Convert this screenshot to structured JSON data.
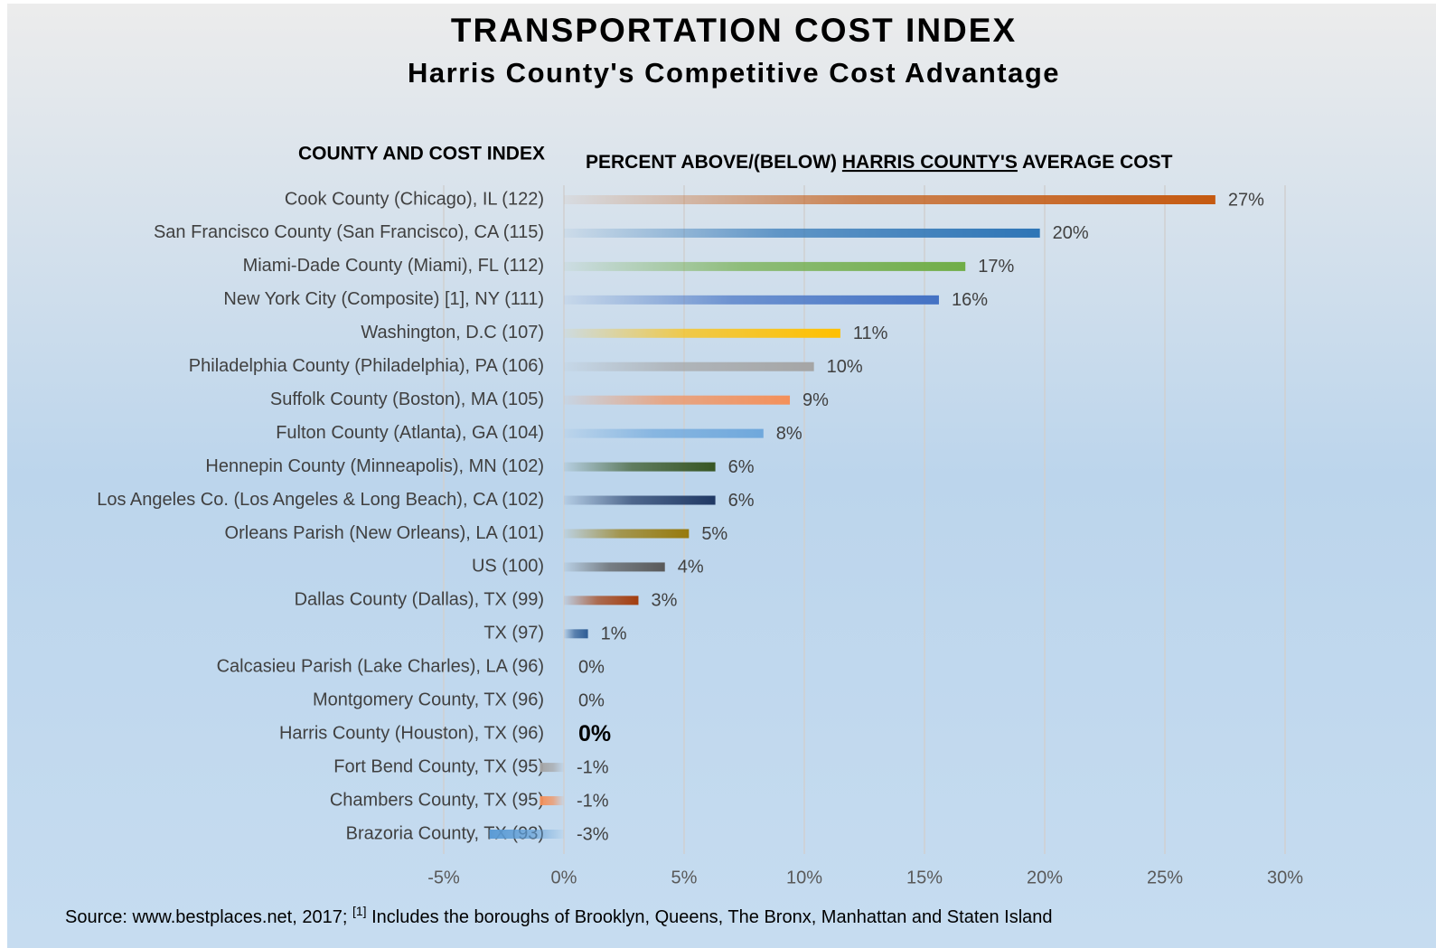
{
  "chart_data": {
    "type": "bar",
    "orientation": "horizontal",
    "title": "TRANSPORTATION COST INDEX",
    "subtitle": "Harris County's Competitive Cost Advantage",
    "category_axis_title": "COUNTY AND COST INDEX",
    "value_axis_title": [
      "PERCENT ABOVE/(BELOW) ",
      "HARRIS COUNTY'S",
      " AVERAGE COST"
    ],
    "source": [
      "Source: www.bestplaces.net, 2017; ",
      "[1]",
      " Includes the boroughs of Brooklyn, Queens, The Bronx, Manhattan and Staten Island"
    ],
    "categories": [
      "Cook County (Chicago), IL (122)",
      "San Francisco County (San Francisco), CA (115)",
      "Miami-Dade County (Miami), FL (112)",
      "New York City (Composite) [1], NY (111)",
      "Washington, D.C (107)",
      "Philadelphia County (Philadelphia), PA (106)",
      "Suffolk County (Boston), MA (105)",
      "Fulton County (Atlanta), GA (104)",
      "Hennepin County (Minneapolis), MN (102)",
      "Los Angeles Co. (Los Angeles & Long Beach), CA (102)",
      "Orleans Parish (New Orleans), LA (101)",
      "US (100)",
      "Dallas County (Dallas), TX (99)",
      "TX (97)",
      "Calcasieu Parish (Lake Charles), LA (96)",
      "Montgomery County, TX (96)",
      "Harris County (Houston), TX (96)",
      "Fort Bend County, TX (95)",
      "Chambers County, TX (95)",
      "Brazoria County, TX (93)"
    ],
    "values": [
      27.1,
      19.8,
      16.7,
      15.6,
      11.5,
      10.4,
      9.4,
      8.3,
      6.3,
      6.3,
      5.2,
      4.2,
      3.1,
      1.0,
      0,
      0,
      0,
      -1.0,
      -1.0,
      -3.1
    ],
    "value_labels": [
      "27%",
      "20%",
      "17%",
      "16%",
      "11%",
      "10%",
      "9%",
      "8%",
      "6%",
      "6%",
      "5%",
      "4%",
      "3%",
      "1%",
      "0%",
      "0%",
      "0%",
      "-1%",
      "-1%",
      "-3%"
    ],
    "colors": [
      "#c55a11",
      "#2e75b6",
      "#70ad47",
      "#4472c4",
      "#ffc000",
      "#a5a5a5",
      "#f4905a",
      "#6fa8dc",
      "#375623",
      "#1f3864",
      "#977a0c",
      "#595959",
      "#a33d0e",
      "#2e5c94",
      "#a5a5a5",
      "#a5a5a5",
      "#a5a5a5",
      "#a5a5a5",
      "#f4905a",
      "#5b9bd5"
    ],
    "highlight": 16,
    "xlim": [
      -5,
      30
    ],
    "xticks": [
      {
        "value": -5,
        "label": "-5%"
      },
      {
        "value": 0,
        "label": "0%"
      },
      {
        "value": 5,
        "label": "5%"
      },
      {
        "value": 10,
        "label": "10%"
      },
      {
        "value": 15,
        "label": "15%"
      },
      {
        "value": 20,
        "label": "20%"
      },
      {
        "value": 25,
        "label": "25%"
      },
      {
        "value": 30,
        "label": "30%"
      }
    ],
    "grid": true
  }
}
